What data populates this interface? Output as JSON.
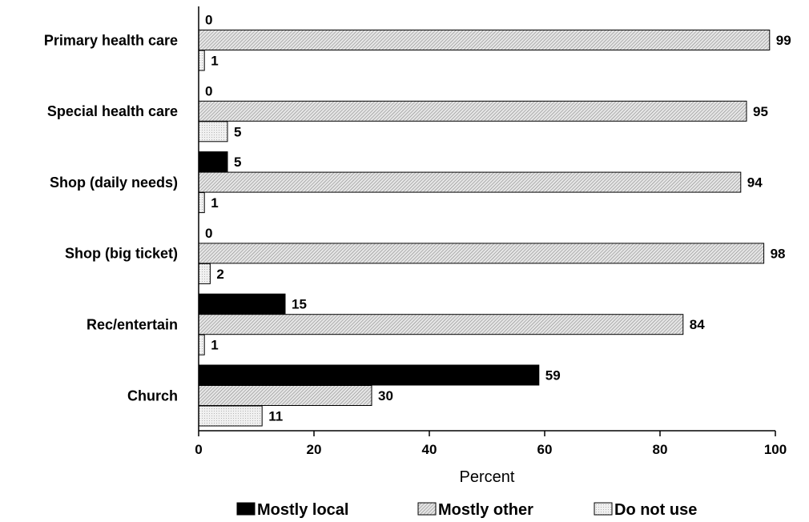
{
  "chart_data": {
    "type": "bar",
    "orientation": "horizontal",
    "categories": [
      "Primary health care",
      "Special health care",
      "Shop (daily needs)",
      "Shop (big ticket)",
      "Rec/entertain",
      "Church"
    ],
    "series": [
      {
        "name": "Mostly local",
        "values": [
          0,
          0,
          5,
          0,
          15,
          59
        ],
        "color": "#000000",
        "fill": "solid"
      },
      {
        "name": "Mostly other",
        "values": [
          99,
          95,
          94,
          98,
          84,
          30
        ],
        "color": "#c8c8c8",
        "fill": "hatched"
      },
      {
        "name": "Do not use",
        "values": [
          1,
          5,
          1,
          2,
          1,
          11
        ],
        "color": "#e0e0e0",
        "fill": "dotted"
      }
    ],
    "title": "",
    "xlabel": "Percent",
    "ylabel": "",
    "xlim": [
      0,
      100
    ],
    "xticks": [
      "0",
      "20",
      "40",
      "60",
      "80",
      "100"
    ],
    "grid": false,
    "legend_position": "bottom"
  }
}
